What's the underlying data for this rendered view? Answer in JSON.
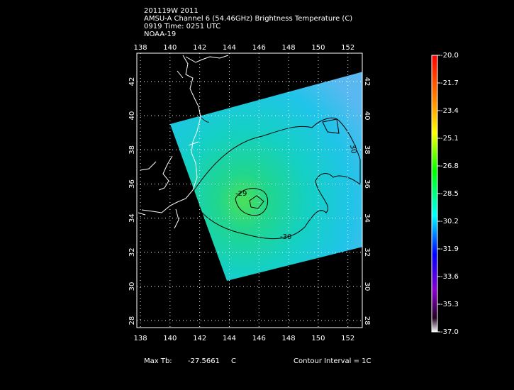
{
  "header": {
    "lines": [
      "201119W 2011",
      "AMSU-A Channel 6 (54.46GHz) Brightness Temperature (C)",
      "0919 Time: 0251 UTC",
      "NOAA-19"
    ]
  },
  "map": {
    "lon_range": [
      137.76,
      152.97
    ],
    "lat_range": [
      27.59,
      43.66
    ],
    "lon_ticks": [
      138,
      140,
      142,
      144,
      146,
      148,
      150,
      152
    ],
    "lat_ticks": [
      28,
      30,
      32,
      34,
      36,
      38,
      40,
      42
    ],
    "contour_labels": [
      "-29",
      "-30",
      "30"
    ]
  },
  "colorbar": {
    "labels": [
      "-20.0",
      "-21.7",
      "-23.4",
      "-25.1",
      "-26.8",
      "-28.5",
      "-30.2",
      "-31.9",
      "-33.6",
      "-35.3",
      "-37.0"
    ]
  },
  "footer": {
    "max_label": "Max Tb:",
    "max_value": "-27.5661",
    "unit": "C",
    "interval": "Contour Interval = 1C"
  }
}
